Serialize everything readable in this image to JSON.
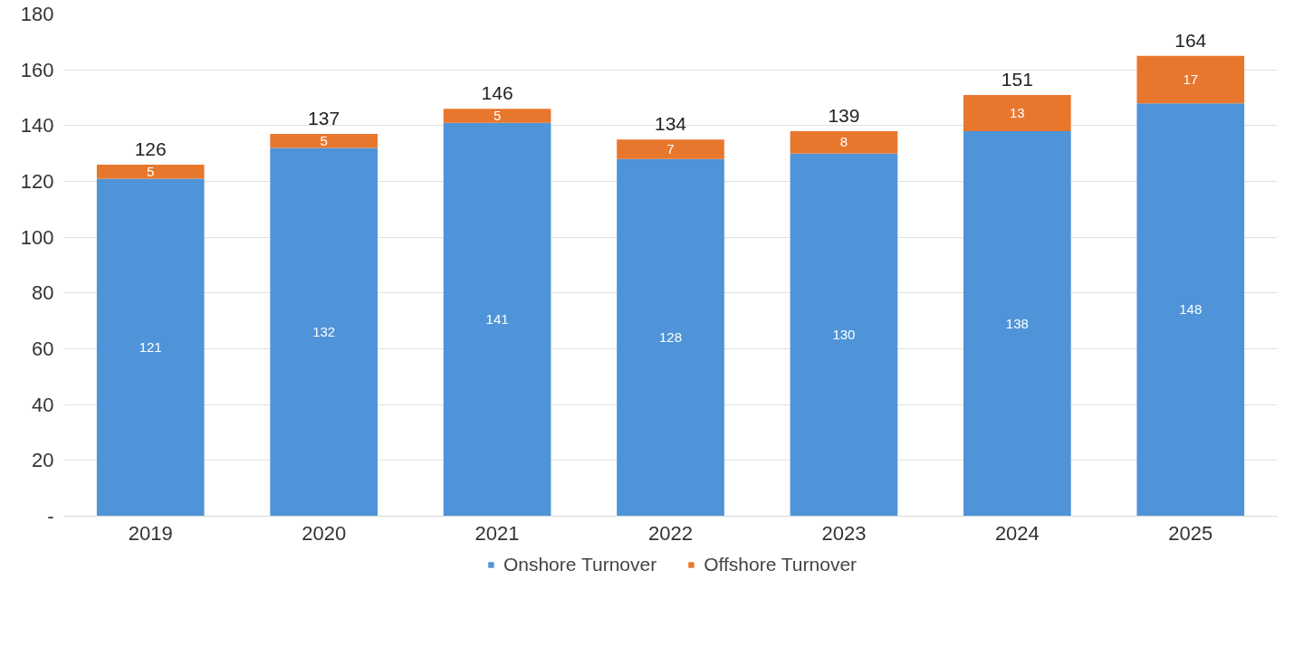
{
  "chart_data": {
    "type": "bar",
    "stacked": true,
    "categories": [
      "2019",
      "2020",
      "2021",
      "2022",
      "2023",
      "2024",
      "2025"
    ],
    "series": [
      {
        "name": "Onshore Turnover",
        "color": "#4f94d8",
        "values": [
          121,
          132,
          141,
          128,
          130,
          138,
          148
        ]
      },
      {
        "name": "Offshore Turnover",
        "color": "#e8772e",
        "values": [
          5,
          5,
          5,
          7,
          8,
          13,
          17
        ]
      }
    ],
    "totals": [
      "126",
      "137",
      "146",
      "134",
      "139",
      "151",
      "164"
    ],
    "data_labels": true,
    "ylim": [
      0,
      180
    ],
    "yticks": [
      {
        "value": 0,
        "label": "-"
      },
      20,
      40,
      60,
      80,
      100,
      120,
      140,
      160,
      180
    ],
    "grid": "y",
    "legend": "bottom"
  }
}
